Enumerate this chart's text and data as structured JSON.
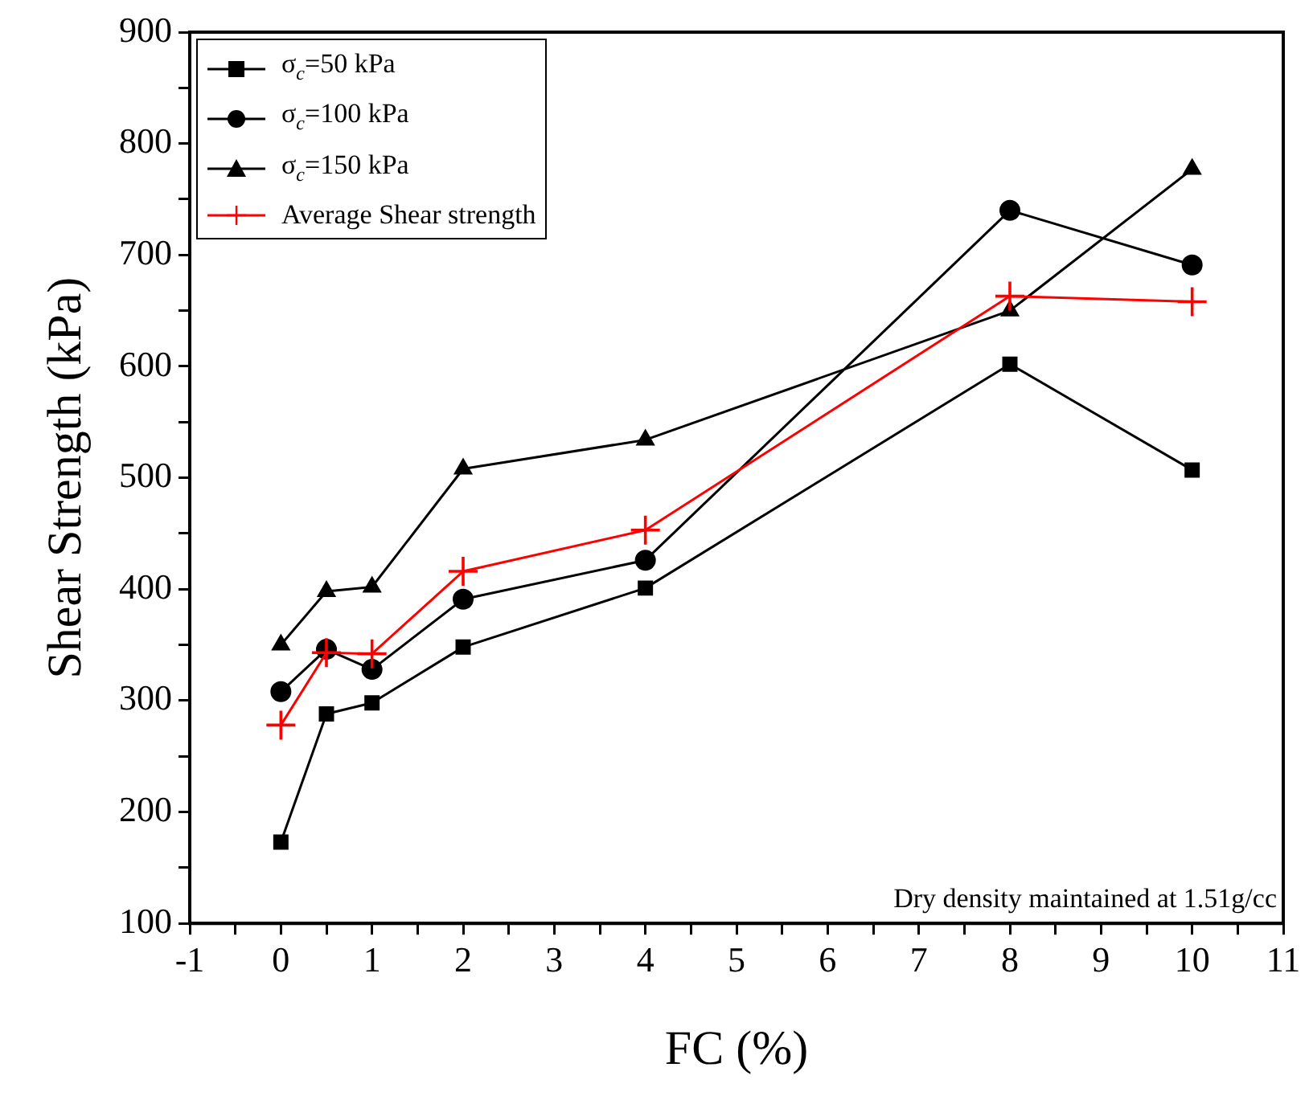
{
  "chart_data": {
    "type": "line",
    "xlabel": "FC (%)",
    "ylabel": "Shear Strength (kPa)",
    "x": [
      0,
      0.5,
      1,
      2,
      4,
      8,
      10
    ],
    "series": [
      {
        "name": "σ$_{c}$=50 kPa",
        "color": "#000000",
        "marker": "square",
        "values": [
          173,
          288,
          298,
          348,
          401,
          602,
          507
        ]
      },
      {
        "name": "σ$_{c}$=100 kPa",
        "color": "#000000",
        "marker": "circle",
        "values": [
          308,
          346,
          328,
          391,
          426,
          740,
          691
        ]
      },
      {
        "name": "σ$_{c}$=150 kPa",
        "color": "#000000",
        "marker": "triangle",
        "values": [
          350,
          398,
          402,
          508,
          534,
          650,
          777
        ]
      },
      {
        "name": "Average Shear strength",
        "color": "#ff0000",
        "marker": "cross",
        "values": [
          278,
          343,
          342,
          416,
          453,
          663,
          658
        ]
      }
    ],
    "xlim": [
      -1,
      11
    ],
    "xticks": [
      -1,
      {
        "value": -0.5,
        "label": null
      },
      0,
      {
        "value": 0.5,
        "label": null
      },
      1,
      {
        "value": 1.5,
        "label": null
      },
      2,
      {
        "value": 2.5,
        "label": null
      },
      3,
      {
        "value": 3.5,
        "label": null
      },
      4,
      {
        "value": 4.5,
        "label": null
      },
      5,
      {
        "value": 5.5,
        "label": null
      },
      6,
      {
        "value": 6.5,
        "label": null
      },
      7,
      {
        "value": 7.5,
        "label": null
      },
      8,
      {
        "value": 8.5,
        "label": null
      },
      9,
      {
        "value": 9.5,
        "label": null
      },
      10,
      {
        "value": 10.5,
        "label": null
      },
      11
    ],
    "ylim": [
      100,
      900
    ],
    "yticks": [
      100,
      {
        "value": 150,
        "label": null
      },
      200,
      {
        "value": 250,
        "label": null
      },
      300,
      {
        "value": 350,
        "label": null
      },
      400,
      {
        "value": 450,
        "label": null
      },
      500,
      {
        "value": 550,
        "label": null
      },
      600,
      {
        "value": 650,
        "label": null
      },
      700,
      {
        "value": 750,
        "label": null
      },
      800,
      {
        "value": 850,
        "label": null
      },
      900
    ],
    "grid": false,
    "legend": "top left",
    "annotations": [
      "Dry density maintained at 1.51g/cc"
    ]
  }
}
